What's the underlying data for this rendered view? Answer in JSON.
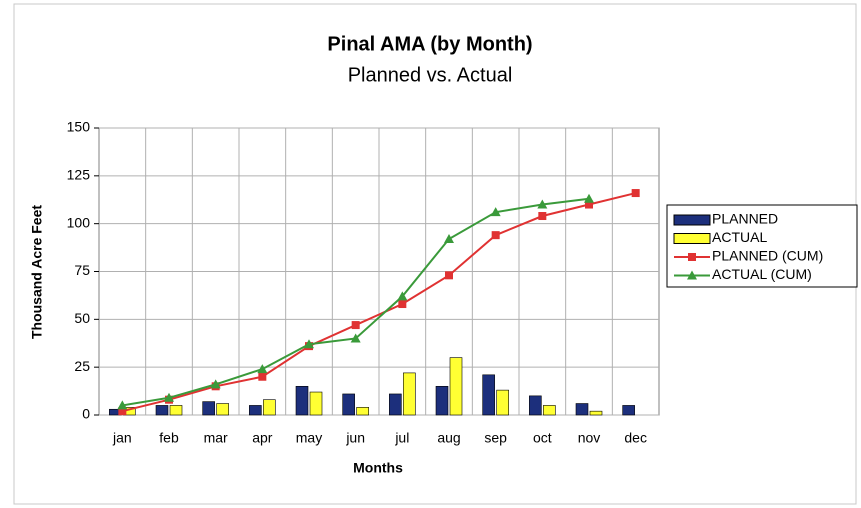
{
  "chart_data": {
    "type": "bar",
    "title": "Pinal AMA (by Month)",
    "subtitle": "Planned vs. Actual",
    "x_label": "Months",
    "y_label": "Thousand Acre Feet",
    "categories": [
      "jan",
      "feb",
      "mar",
      "apr",
      "may",
      "jun",
      "jul",
      "aug",
      "sep",
      "oct",
      "nov",
      "dec"
    ],
    "series": [
      {
        "name": "PLANNED",
        "type": "bar",
        "color": "#1c2f7c",
        "values": [
          3,
          5,
          7,
          5,
          15,
          11,
          11,
          15,
          21,
          10,
          6,
          5
        ]
      },
      {
        "name": "ACTUAL",
        "type": "bar",
        "color": "#ffff33",
        "values": [
          4,
          5,
          6,
          8,
          12,
          4,
          22,
          30,
          13,
          5,
          2,
          null
        ]
      },
      {
        "name": "PLANNED (CUM)",
        "type": "line",
        "marker": "square",
        "color": "#e03232",
        "values": [
          2,
          8,
          15,
          20,
          36,
          47,
          58,
          73,
          94,
          104,
          110,
          116
        ]
      },
      {
        "name": "ACTUAL (CUM)",
        "type": "line",
        "marker": "triangle",
        "color": "#3a9a3a",
        "values": [
          5,
          9,
          16,
          24,
          37,
          40,
          62,
          92,
          106,
          110,
          113,
          null
        ]
      }
    ],
    "ylim": [
      0,
      150
    ],
    "yticks": [
      0,
      25,
      50,
      75,
      100,
      125,
      150
    ],
    "grid": true,
    "legend": "right"
  }
}
